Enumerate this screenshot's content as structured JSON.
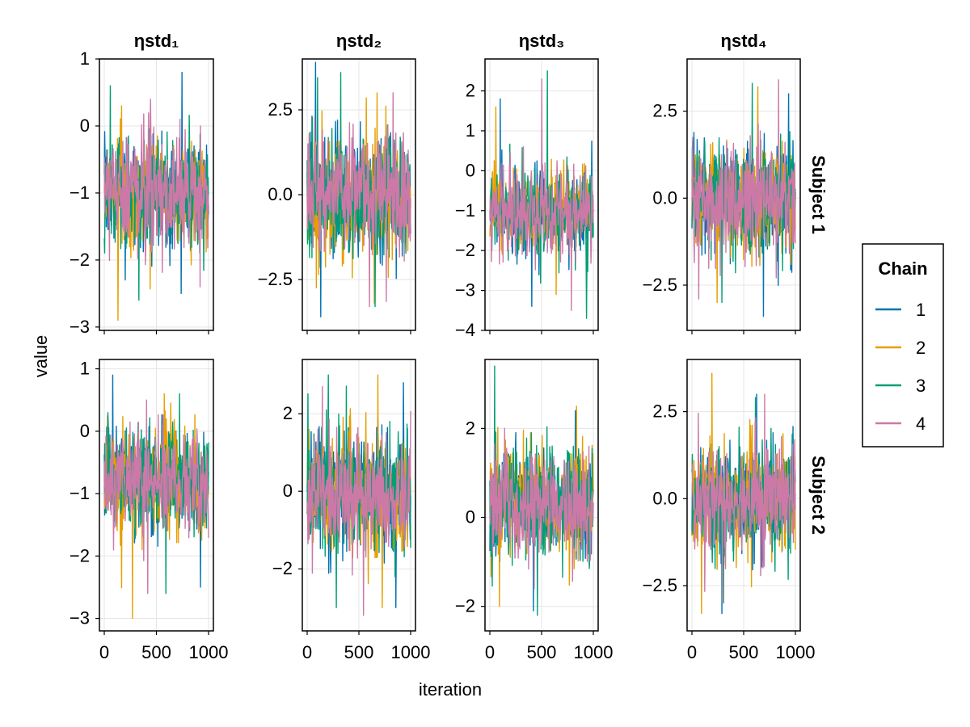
{
  "chart_data": {
    "type": "line",
    "title": "",
    "xlabel": "iteration",
    "ylabel": "value",
    "column_titles": [
      "ηstd₁",
      "ηstd₂",
      "ηstd₃",
      "ηstd₄"
    ],
    "row_titles": [
      "Subject 1",
      "Subject 2"
    ],
    "x_range": [
      0,
      1000
    ],
    "x_ticks": [
      0,
      500,
      1000
    ],
    "x_tick_labels": [
      "0",
      "500",
      "1000"
    ],
    "legend": {
      "title": "Chain",
      "entries": [
        "1",
        "2",
        "3",
        "4"
      ],
      "colors": [
        "#0072B2",
        "#E69F00",
        "#009E73",
        "#CC79A7"
      ],
      "placement": "right"
    },
    "panels": [
      {
        "row": 0,
        "col": 0,
        "ylim": [
          -3.05,
          1.0
        ],
        "yticks": [
          1,
          0,
          -1,
          -2,
          -3
        ],
        "ytick_labels": [
          "1",
          "0",
          "−1",
          "−2",
          "−3"
        ],
        "center": -1.0,
        "spread": 1.0,
        "max_by_chain": [
          0.8,
          0.3,
          0.6,
          0.4
        ],
        "min_by_chain": [
          -2.5,
          -2.9,
          -2.6,
          -2.4
        ]
      },
      {
        "row": 0,
        "col": 1,
        "ylim": [
          -4.0,
          4.0
        ],
        "yticks": [
          2.5,
          0.0,
          -2.5
        ],
        "ytick_labels": [
          "2.5",
          "0.0",
          "−2.5"
        ],
        "center": 0.0,
        "spread": 2.2,
        "max_by_chain": [
          3.9,
          3.0,
          3.6,
          3.0
        ],
        "min_by_chain": [
          -3.6,
          -3.2,
          -3.3,
          -3.3
        ]
      },
      {
        "row": 0,
        "col": 2,
        "ylim": [
          -4.0,
          2.8
        ],
        "yticks": [
          2,
          1,
          0,
          -1,
          -2,
          -3,
          -4
        ],
        "ytick_labels": [
          "2",
          "1",
          "0",
          "−1",
          "−2",
          "−3",
          "−4"
        ],
        "center": -1.0,
        "spread": 1.3,
        "max_by_chain": [
          1.8,
          1.6,
          2.5,
          2.3
        ],
        "min_by_chain": [
          -3.4,
          -3.1,
          -3.7,
          -3.5
        ]
      },
      {
        "row": 0,
        "col": 3,
        "ylim": [
          -3.8,
          4.0
        ],
        "yticks": [
          2.5,
          0.0,
          -2.5
        ],
        "ytick_labels": [
          "2.5",
          "0.0",
          "−2.5"
        ],
        "center": 0.0,
        "spread": 1.9,
        "max_by_chain": [
          3.0,
          3.2,
          3.3,
          3.4
        ],
        "min_by_chain": [
          -3.4,
          -3.0,
          -3.0,
          -2.9
        ]
      },
      {
        "row": 1,
        "col": 0,
        "ylim": [
          -3.2,
          1.15
        ],
        "yticks": [
          1,
          0,
          -1,
          -2,
          -3
        ],
        "ytick_labels": [
          "1",
          "0",
          "−1",
          "−2",
          "−3"
        ],
        "center": -0.8,
        "spread": 1.0,
        "max_by_chain": [
          0.9,
          0.6,
          0.6,
          0.5
        ],
        "min_by_chain": [
          -2.5,
          -3.0,
          -2.6,
          -2.6
        ]
      },
      {
        "row": 1,
        "col": 1,
        "ylim": [
          -3.6,
          3.4
        ],
        "yticks": [
          2,
          0,
          -2
        ],
        "ytick_labels": [
          "2",
          "0",
          "−2"
        ],
        "center": 0.0,
        "spread": 1.8,
        "max_by_chain": [
          2.8,
          3.0,
          3.0,
          2.7
        ],
        "min_by_chain": [
          -3.0,
          -3.0,
          -3.0,
          -3.2
        ]
      },
      {
        "row": 1,
        "col": 2,
        "ylim": [
          -2.55,
          3.55
        ],
        "yticks": [
          2,
          0,
          -2
        ],
        "ytick_labels": [
          "2",
          "0",
          "−2"
        ],
        "center": 0.3,
        "spread": 1.4,
        "max_by_chain": [
          2.4,
          2.5,
          3.4,
          2.0
        ],
        "min_by_chain": [
          -2.1,
          -2.0,
          -2.2,
          -1.6
        ]
      },
      {
        "row": 1,
        "col": 3,
        "ylim": [
          -3.8,
          4.0
        ],
        "yticks": [
          2.5,
          0.0,
          -2.5
        ],
        "ytick_labels": [
          "2.5",
          "0.0",
          "−2.5"
        ],
        "center": 0.0,
        "spread": 1.8,
        "max_by_chain": [
          3.0,
          3.6,
          2.9,
          3.0
        ],
        "min_by_chain": [
          -3.3,
          -3.3,
          -3.0,
          -3.0
        ]
      }
    ]
  }
}
